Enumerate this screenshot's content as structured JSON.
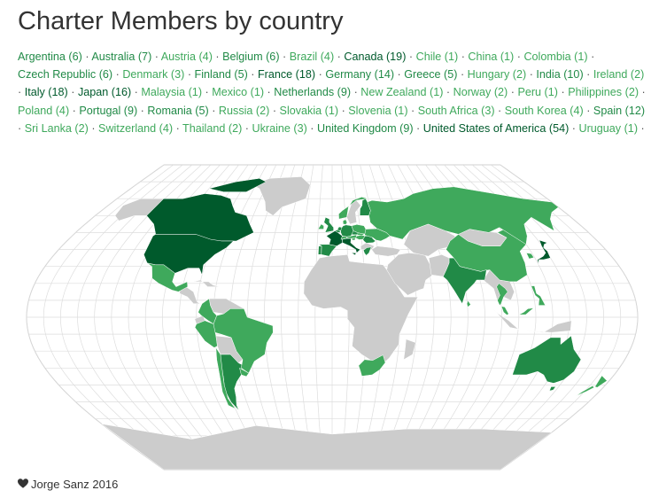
{
  "title": "Charter Members by country",
  "colors": {
    "light": "#3fa95c",
    "medium": "#218a47",
    "dark": "#005a2c",
    "nodata": "#cccccc",
    "water": "#ffffff",
    "grid": "#dddddd",
    "text": "#333333"
  },
  "countries": [
    {
      "name": "Argentina",
      "count": 6
    },
    {
      "name": "Australia",
      "count": 7
    },
    {
      "name": "Austria",
      "count": 4
    },
    {
      "name": "Belgium",
      "count": 6
    },
    {
      "name": "Brazil",
      "count": 4
    },
    {
      "name": "Canada",
      "count": 19
    },
    {
      "name": "Chile",
      "count": 1
    },
    {
      "name": "China",
      "count": 1
    },
    {
      "name": "Colombia",
      "count": 1
    },
    {
      "name": "Czech Republic",
      "count": 6
    },
    {
      "name": "Denmark",
      "count": 3
    },
    {
      "name": "Finland",
      "count": 5
    },
    {
      "name": "France",
      "count": 18
    },
    {
      "name": "Germany",
      "count": 14
    },
    {
      "name": "Greece",
      "count": 5
    },
    {
      "name": "Hungary",
      "count": 2
    },
    {
      "name": "India",
      "count": 10
    },
    {
      "name": "Ireland",
      "count": 2
    },
    {
      "name": "Italy",
      "count": 18
    },
    {
      "name": "Japan",
      "count": 16
    },
    {
      "name": "Malaysia",
      "count": 1
    },
    {
      "name": "Mexico",
      "count": 1
    },
    {
      "name": "Netherlands",
      "count": 9
    },
    {
      "name": "New Zealand",
      "count": 1
    },
    {
      "name": "Norway",
      "count": 2
    },
    {
      "name": "Peru",
      "count": 1
    },
    {
      "name": "Philippines",
      "count": 2
    },
    {
      "name": "Poland",
      "count": 4
    },
    {
      "name": "Portugal",
      "count": 9
    },
    {
      "name": "Romania",
      "count": 5
    },
    {
      "name": "Russia",
      "count": 2
    },
    {
      "name": "Slovakia",
      "count": 1
    },
    {
      "name": "Slovenia",
      "count": 1
    },
    {
      "name": "South Africa",
      "count": 3
    },
    {
      "name": "South Korea",
      "count": 4
    },
    {
      "name": "Spain",
      "count": 12
    },
    {
      "name": "Sri Lanka",
      "count": 2
    },
    {
      "name": "Switzerland",
      "count": 4
    },
    {
      "name": "Thailand",
      "count": 2
    },
    {
      "name": "Ukraine",
      "count": 3
    },
    {
      "name": "United Kingdom",
      "count": 9
    },
    {
      "name": "United States of America",
      "count": 54
    },
    {
      "name": "Uruguay",
      "count": 1
    }
  ],
  "footer": {
    "icon": "heart-icon",
    "text": "Jorge Sanz 2016"
  }
}
